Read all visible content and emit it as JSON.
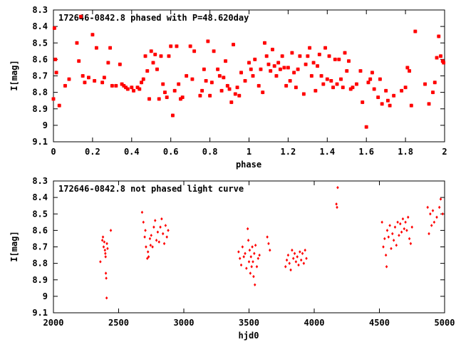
{
  "chart_data": [
    {
      "type": "scatter",
      "title": "172646-0842.8 phased with P=48.620day",
      "xlabel": "phase",
      "ylabel": "I[mag]",
      "xlim": [
        0,
        2
      ],
      "ylim": [
        9.1,
        8.3
      ],
      "y_inverted": true,
      "xticks": [
        0,
        0.2,
        0.4,
        0.6,
        0.8,
        1,
        1.2,
        1.4,
        1.6,
        1.8,
        2
      ],
      "xtick_labels": [
        "0",
        "0.2",
        "0.4",
        "0.6",
        "0.8",
        "1",
        "1.2",
        "1.4",
        "1.6",
        "1.8",
        "2"
      ],
      "yticks": [
        8.3,
        8.4,
        8.5,
        8.6,
        8.7,
        8.8,
        8.9,
        9,
        9.1
      ],
      "ytick_labels": [
        "8.3",
        "8.4",
        "8.5",
        "8.6",
        "8.7",
        "8.8",
        "8.9",
        "9",
        "9.1"
      ],
      "grid": false,
      "marker_color": "#ff0000",
      "points": [
        [
          0.0,
          8.84
        ],
        [
          0.005,
          8.41
        ],
        [
          0.01,
          8.6
        ],
        [
          0.015,
          8.68
        ],
        [
          0.03,
          8.88
        ],
        [
          0.06,
          8.76
        ],
        [
          0.08,
          8.72
        ],
        [
          0.12,
          8.5
        ],
        [
          0.13,
          8.61
        ],
        [
          0.14,
          8.34
        ],
        [
          0.15,
          8.7
        ],
        [
          0.16,
          8.74
        ],
        [
          0.18,
          8.71
        ],
        [
          0.2,
          8.45
        ],
        [
          0.21,
          8.73
        ],
        [
          0.22,
          8.53
        ],
        [
          0.25,
          8.74
        ],
        [
          0.26,
          8.71
        ],
        [
          0.28,
          8.62
        ],
        [
          0.29,
          8.53
        ],
        [
          0.3,
          8.76
        ],
        [
          0.32,
          8.76
        ],
        [
          0.34,
          8.63
        ],
        [
          0.35,
          8.75
        ],
        [
          0.36,
          8.76
        ],
        [
          0.37,
          8.77
        ],
        [
          0.38,
          8.78
        ],
        [
          0.4,
          8.77
        ],
        [
          0.41,
          8.79
        ],
        [
          0.43,
          8.77
        ],
        [
          0.44,
          8.78
        ],
        [
          0.45,
          8.74
        ],
        [
          0.46,
          8.72
        ],
        [
          0.47,
          8.58
        ],
        [
          0.48,
          8.67
        ],
        [
          0.49,
          8.84
        ],
        [
          0.5,
          8.55
        ],
        [
          0.51,
          8.62
        ],
        [
          0.52,
          8.57
        ],
        [
          0.53,
          8.66
        ],
        [
          0.54,
          8.84
        ],
        [
          0.55,
          8.58
        ],
        [
          0.56,
          8.75
        ],
        [
          0.57,
          8.8
        ],
        [
          0.58,
          8.83
        ],
        [
          0.59,
          8.58
        ],
        [
          0.6,
          8.52
        ],
        [
          0.61,
          8.94
        ],
        [
          0.62,
          8.79
        ],
        [
          0.63,
          8.52
        ],
        [
          0.64,
          8.75
        ],
        [
          0.65,
          8.84
        ],
        [
          0.66,
          8.83
        ],
        [
          0.68,
          8.7
        ],
        [
          0.7,
          8.52
        ],
        [
          0.71,
          8.72
        ],
        [
          0.72,
          8.55
        ],
        [
          0.75,
          8.82
        ],
        [
          0.76,
          8.79
        ],
        [
          0.77,
          8.66
        ],
        [
          0.78,
          8.73
        ],
        [
          0.79,
          8.49
        ],
        [
          0.8,
          8.82
        ],
        [
          0.81,
          8.74
        ],
        [
          0.82,
          8.55
        ],
        [
          0.84,
          8.66
        ],
        [
          0.85,
          8.7
        ],
        [
          0.86,
          8.79
        ],
        [
          0.87,
          8.71
        ],
        [
          0.88,
          8.61
        ],
        [
          0.89,
          8.76
        ],
        [
          0.9,
          8.78
        ],
        [
          0.91,
          8.86
        ],
        [
          0.92,
          8.51
        ],
        [
          0.93,
          8.81
        ],
        [
          0.94,
          8.77
        ],
        [
          0.95,
          8.82
        ],
        [
          0.96,
          8.68
        ],
        [
          0.98,
          8.73
        ],
        [
          1.0,
          8.62
        ],
        [
          1.01,
          8.66
        ],
        [
          1.02,
          8.7
        ],
        [
          1.03,
          8.6
        ],
        [
          1.05,
          8.76
        ],
        [
          1.06,
          8.66
        ],
        [
          1.07,
          8.8
        ],
        [
          1.08,
          8.5
        ],
        [
          1.09,
          8.58
        ],
        [
          1.1,
          8.63
        ],
        [
          1.11,
          8.67
        ],
        [
          1.12,
          8.54
        ],
        [
          1.13,
          8.64
        ],
        [
          1.14,
          8.7
        ],
        [
          1.15,
          8.62
        ],
        [
          1.16,
          8.66
        ],
        [
          1.17,
          8.58
        ],
        [
          1.18,
          8.65
        ],
        [
          1.19,
          8.76
        ],
        [
          1.2,
          8.65
        ],
        [
          1.21,
          8.73
        ],
        [
          1.22,
          8.56
        ],
        [
          1.23,
          8.68
        ],
        [
          1.24,
          8.77
        ],
        [
          1.25,
          8.66
        ],
        [
          1.26,
          8.58
        ],
        [
          1.28,
          8.81
        ],
        [
          1.29,
          8.63
        ],
        [
          1.3,
          8.58
        ],
        [
          1.31,
          8.53
        ],
        [
          1.32,
          8.7
        ],
        [
          1.33,
          8.62
        ],
        [
          1.34,
          8.79
        ],
        [
          1.35,
          8.64
        ],
        [
          1.36,
          8.57
        ],
        [
          1.37,
          8.7
        ],
        [
          1.38,
          8.75
        ],
        [
          1.39,
          8.53
        ],
        [
          1.4,
          8.72
        ],
        [
          1.41,
          8.58
        ],
        [
          1.42,
          8.73
        ],
        [
          1.43,
          8.77
        ],
        [
          1.44,
          8.6
        ],
        [
          1.45,
          8.75
        ],
        [
          1.46,
          8.6
        ],
        [
          1.47,
          8.72
        ],
        [
          1.48,
          8.77
        ],
        [
          1.49,
          8.56
        ],
        [
          1.5,
          8.67
        ],
        [
          1.51,
          8.61
        ],
        [
          1.52,
          8.78
        ],
        [
          1.53,
          8.77
        ],
        [
          1.55,
          8.75
        ],
        [
          1.57,
          8.67
        ],
        [
          1.58,
          8.86
        ],
        [
          1.6,
          9.01
        ],
        [
          1.61,
          8.74
        ],
        [
          1.62,
          8.72
        ],
        [
          1.63,
          8.68
        ],
        [
          1.64,
          8.78
        ],
        [
          1.66,
          8.83
        ],
        [
          1.67,
          8.72
        ],
        [
          1.68,
          8.87
        ],
        [
          1.7,
          8.79
        ],
        [
          1.71,
          8.85
        ],
        [
          1.72,
          8.88
        ],
        [
          1.74,
          8.82
        ],
        [
          1.78,
          8.79
        ],
        [
          1.8,
          8.77
        ],
        [
          1.81,
          8.65
        ],
        [
          1.82,
          8.67
        ],
        [
          1.83,
          8.88
        ],
        [
          1.85,
          8.43
        ],
        [
          1.9,
          8.75
        ],
        [
          1.92,
          8.87
        ],
        [
          1.94,
          8.8
        ],
        [
          1.95,
          8.74
        ],
        [
          1.96,
          8.59
        ],
        [
          1.97,
          8.46
        ],
        [
          1.98,
          8.58
        ],
        [
          1.99,
          8.61
        ],
        [
          1.995,
          8.62
        ]
      ]
    },
    {
      "type": "scatter",
      "title": "172646-0842.8 not phased light curve",
      "xlabel": "hjd0",
      "ylabel": "I[mag]",
      "xlim": [
        2000,
        5000
      ],
      "ylim": [
        9.1,
        8.3
      ],
      "y_inverted": true,
      "xticks": [
        2000,
        2500,
        3000,
        3500,
        4000,
        4500,
        5000
      ],
      "xtick_labels": [
        "2000",
        "2500",
        "3000",
        "3500",
        "4000",
        "4500",
        "5000"
      ],
      "yticks": [
        8.3,
        8.4,
        8.5,
        8.6,
        8.7,
        8.8,
        8.9,
        9,
        9.1
      ],
      "ytick_labels": [
        "8.3",
        "8.4",
        "8.5",
        "8.6",
        "8.7",
        "8.8",
        "8.9",
        "9",
        "9.1"
      ],
      "grid": false,
      "marker_color": "#ff0000",
      "points": [
        [
          2360,
          8.79
        ],
        [
          2375,
          8.66
        ],
        [
          2380,
          8.64
        ],
        [
          2385,
          8.7
        ],
        [
          2390,
          8.67
        ],
        [
          2395,
          8.72
        ],
        [
          2398,
          8.74
        ],
        [
          2400,
          8.76
        ],
        [
          2402,
          8.86
        ],
        [
          2405,
          8.89
        ],
        [
          2408,
          9.01
        ],
        [
          2410,
          8.68
        ],
        [
          2415,
          8.71
        ],
        [
          2440,
          8.6
        ],
        [
          2680,
          8.49
        ],
        [
          2690,
          8.55
        ],
        [
          2700,
          8.64
        ],
        [
          2705,
          8.6
        ],
        [
          2710,
          8.7
        ],
        [
          2720,
          8.77
        ],
        [
          2725,
          8.73
        ],
        [
          2730,
          8.76
        ],
        [
          2740,
          8.65
        ],
        [
          2745,
          8.69
        ],
        [
          2750,
          8.63
        ],
        [
          2760,
          8.7
        ],
        [
          2770,
          8.58
        ],
        [
          2780,
          8.54
        ],
        [
          2790,
          8.66
        ],
        [
          2800,
          8.61
        ],
        [
          2810,
          8.67
        ],
        [
          2820,
          8.58
        ],
        [
          2830,
          8.53
        ],
        [
          2840,
          8.62
        ],
        [
          2850,
          8.68
        ],
        [
          2860,
          8.57
        ],
        [
          2870,
          8.64
        ],
        [
          2880,
          8.6
        ],
        [
          3420,
          8.73
        ],
        [
          3430,
          8.77
        ],
        [
          3440,
          8.81
        ],
        [
          3450,
          8.7
        ],
        [
          3460,
          8.76
        ],
        [
          3470,
          8.74
        ],
        [
          3480,
          8.83
        ],
        [
          3490,
          8.59
        ],
        [
          3495,
          8.66
        ],
        [
          3500,
          8.79
        ],
        [
          3505,
          8.72
        ],
        [
          3510,
          8.86
        ],
        [
          3515,
          8.76
        ],
        [
          3520,
          8.82
        ],
        [
          3525,
          8.7
        ],
        [
          3530,
          8.79
        ],
        [
          3535,
          8.88
        ],
        [
          3540,
          8.74
        ],
        [
          3545,
          8.93
        ],
        [
          3550,
          8.69
        ],
        [
          3560,
          8.82
        ],
        [
          3570,
          8.77
        ],
        [
          3580,
          8.75
        ],
        [
          3640,
          8.64
        ],
        [
          3650,
          8.68
        ],
        [
          3660,
          8.72
        ],
        [
          3780,
          8.82
        ],
        [
          3790,
          8.78
        ],
        [
          3800,
          8.75
        ],
        [
          3810,
          8.8
        ],
        [
          3820,
          8.84
        ],
        [
          3830,
          8.72
        ],
        [
          3840,
          8.77
        ],
        [
          3850,
          8.74
        ],
        [
          3860,
          8.79
        ],
        [
          3870,
          8.76
        ],
        [
          3880,
          8.81
        ],
        [
          3890,
          8.73
        ],
        [
          3900,
          8.78
        ],
        [
          3910,
          8.74
        ],
        [
          3920,
          8.8
        ],
        [
          3930,
          8.72
        ],
        [
          3940,
          8.77
        ],
        [
          4170,
          8.44
        ],
        [
          4175,
          8.46
        ],
        [
          4180,
          8.34
        ],
        [
          4520,
          8.55
        ],
        [
          4530,
          8.7
        ],
        [
          4540,
          8.65
        ],
        [
          4550,
          8.75
        ],
        [
          4555,
          8.82
        ],
        [
          4560,
          8.6
        ],
        [
          4570,
          8.64
        ],
        [
          4580,
          8.57
        ],
        [
          4590,
          8.71
        ],
        [
          4600,
          8.62
        ],
        [
          4610,
          8.66
        ],
        [
          4620,
          8.58
        ],
        [
          4630,
          8.69
        ],
        [
          4640,
          8.55
        ],
        [
          4650,
          8.63
        ],
        [
          4660,
          8.56
        ],
        [
          4670,
          8.61
        ],
        [
          4680,
          8.53
        ],
        [
          4690,
          8.59
        ],
        [
          4700,
          8.55
        ],
        [
          4710,
          8.6
        ],
        [
          4720,
          8.52
        ],
        [
          4730,
          8.65
        ],
        [
          4740,
          8.68
        ],
        [
          4750,
          8.58
        ],
        [
          4870,
          8.46
        ],
        [
          4880,
          8.62
        ],
        [
          4890,
          8.5
        ],
        [
          4900,
          8.57
        ],
        [
          4910,
          8.48
        ],
        [
          4920,
          8.55
        ],
        [
          4940,
          8.52
        ],
        [
          4960,
          8.46
        ],
        [
          4970,
          8.41
        ],
        [
          4985,
          8.5
        ]
      ]
    }
  ]
}
